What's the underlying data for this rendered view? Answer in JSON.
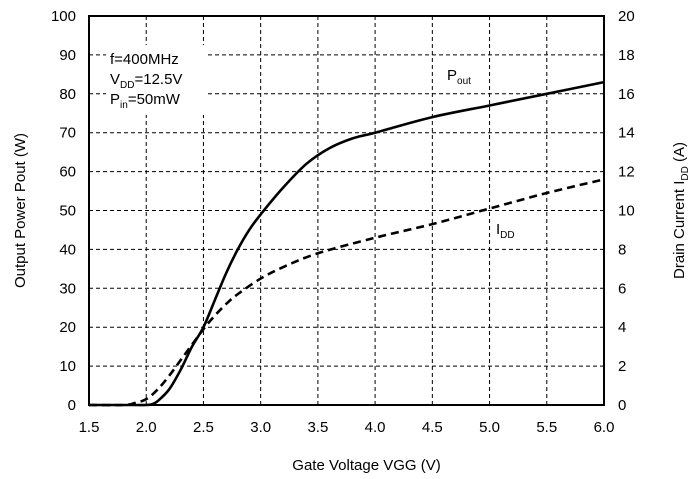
{
  "chart_data": {
    "type": "line",
    "xlabel": "Gate Voltage VGG  (V)",
    "ylabel_left": "Output Power Pout (W)",
    "ylabel_right": {
      "main": "Drain Current I",
      "sub": "DD",
      "unit": " (A)"
    },
    "xlim": [
      1.5,
      6.0
    ],
    "ylim_left": [
      0,
      100
    ],
    "ylim_right": [
      0,
      20
    ],
    "grid": true,
    "x_ticks": [
      "1.5",
      "2.0",
      "2.5",
      "3.0",
      "3.5",
      "4.0",
      "4.5",
      "5.0",
      "5.5",
      "6.0"
    ],
    "y_left_ticks": [
      "0",
      "10",
      "20",
      "30",
      "40",
      "50",
      "60",
      "70",
      "80",
      "90",
      "100"
    ],
    "y_right_ticks": [
      "0",
      "2",
      "4",
      "6",
      "8",
      "10",
      "12",
      "14",
      "16",
      "18",
      "20"
    ],
    "conditions": [
      {
        "main": "f=400MHz",
        "sub": "",
        "rest": ""
      },
      {
        "main": "V",
        "sub": "DD",
        "rest": "=12.5V"
      },
      {
        "main": "P",
        "sub": "in",
        "rest": "=50mW"
      }
    ],
    "series": [
      {
        "label_main": "P",
        "label_sub": "out",
        "axis": "left",
        "style": "solid",
        "color": "#000000",
        "x": [
          1.5,
          1.9,
          2.0,
          2.05,
          2.1,
          2.2,
          2.3,
          2.4,
          2.5,
          2.6,
          2.7,
          2.8,
          2.9,
          3.0,
          3.2,
          3.4,
          3.6,
          3.8,
          4.0,
          4.5,
          5.0,
          5.5,
          6.0
        ],
        "y": [
          0,
          0,
          0,
          0.2,
          1,
          4,
          9,
          15,
          20,
          27,
          34,
          40,
          45,
          49,
          56,
          62,
          66,
          68.5,
          70,
          74,
          77,
          80,
          83
        ]
      },
      {
        "label_main": "I",
        "label_sub": "DD",
        "axis": "right",
        "style": "dashed",
        "color": "#000000",
        "x": [
          1.5,
          1.8,
          1.9,
          2.0,
          2.1,
          2.2,
          2.3,
          2.4,
          2.5,
          2.6,
          2.7,
          2.8,
          3.0,
          3.2,
          3.5,
          4.0,
          4.5,
          5.0,
          5.5,
          6.0
        ],
        "y": [
          0,
          0,
          0.1,
          0.3,
          0.8,
          1.5,
          2.3,
          3.1,
          3.9,
          4.6,
          5.2,
          5.7,
          6.5,
          7.1,
          7.8,
          8.6,
          9.3,
          10.1,
          10.9,
          11.6
        ]
      }
    ]
  }
}
